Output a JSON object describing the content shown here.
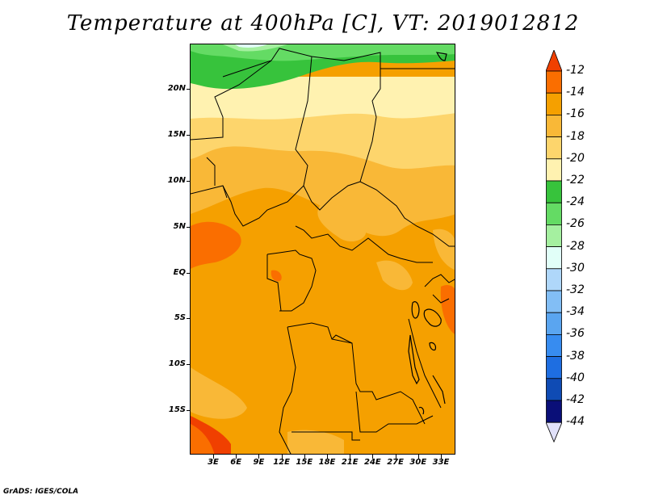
{
  "title": "Temperature at 400hPa [C], VT: 2019012812",
  "credit": "GrADS: IGES/COLA",
  "map": {
    "lat_labels": [
      "20N",
      "15N",
      "10N",
      "5N",
      "EQ",
      "5S",
      "10S",
      "15S"
    ],
    "lon_labels": [
      "3E",
      "6E",
      "9E",
      "12E",
      "15E",
      "18E",
      "21E",
      "24E",
      "27E",
      "30E",
      "33E"
    ]
  },
  "colorbar": {
    "labels": [
      "-12",
      "-14",
      "-16",
      "-18",
      "-20",
      "-22",
      "-24",
      "-26",
      "-28",
      "-30",
      "-32",
      "-34",
      "-36",
      "-38",
      "-40",
      "-42",
      "-44"
    ],
    "colors": [
      "#f04000",
      "#fa6e00",
      "#f5a000",
      "#f9b837",
      "#fdd56c",
      "#fff2b0",
      "#37c33c",
      "#64db64",
      "#a5f0a0",
      "#e1fff8",
      "#afd7fa",
      "#82bef5",
      "#5aa5f0",
      "#378cf0",
      "#1e6ee1",
      "#0f4bb4",
      "#0a0f78",
      "#e1e1fa"
    ]
  }
}
